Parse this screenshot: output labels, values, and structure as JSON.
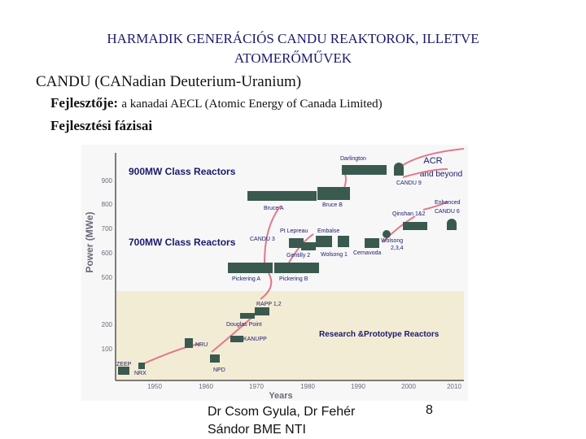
{
  "title_line1": "HARMADIK GENERÁCIÓS CANDU REAKTOROK, ILLETVE",
  "title_line2": "ATOMERŐMŰVEK",
  "line1": "CANDU (CANadian Deuterium-Uranium)",
  "line2_bold": "Fejlesztője:",
  "line2_rest": "a kanadai AECL (Atomic Energy of Canada Limited)",
  "line3": "Fejlesztési fázisai",
  "footer_line1": "Dr Csom Gyula, Dr Fehér",
  "footer_line2": "Sándor BME NTI",
  "page_number": "8",
  "figure": {
    "ylabel": "Power (MWe)",
    "xlabel": "Years",
    "yticks": [
      "900",
      "800",
      "700",
      "600",
      "500",
      "200",
      "100"
    ],
    "xticks": [
      "1950",
      "1960",
      "1970",
      "1980",
      "1990",
      "2000",
      "2010"
    ],
    "class_900": "900MW Class Reactors",
    "class_700": "700MW Class Reactors",
    "class_research": "Research &Prototype Reactors",
    "acr1": "ACR",
    "acr2": "and beyond",
    "labels": {
      "darlington": "Darlington",
      "candu9": "CANDU 9",
      "bruce_a": "Bruce A",
      "bruce_b": "Bruce B",
      "enhanced1": "Enhanced",
      "enhanced2": "CANDU 6",
      "qinshan": "Qinshan 1&2",
      "pt_lepreau": "Pt Lepreau",
      "embalse": "Embalse",
      "candu3": "CANDU 3",
      "gentilly2": "Gentilly 2",
      "wolsong1": "Wolsong 1",
      "cernavoda": "Cernavoda",
      "wolsong234a": "Wolsong",
      "wolsong234b": "2,3,4",
      "pickering_a": "Pickering A",
      "pickering_b": "Pickering B",
      "rapp": "RAPP 1,2",
      "douglas": "Douglas Point",
      "kanupp": "KANUPP",
      "nru": "NRU",
      "npd": "NPD",
      "zeep": "ZEEP",
      "nrx": "NRX"
    },
    "colors": {
      "title": "#1a1a6e",
      "arrow": "#e07a8a",
      "reactor": "#3a5a50",
      "research_band": "#f3ecd4",
      "axis_text": "#6a6a7a"
    }
  }
}
